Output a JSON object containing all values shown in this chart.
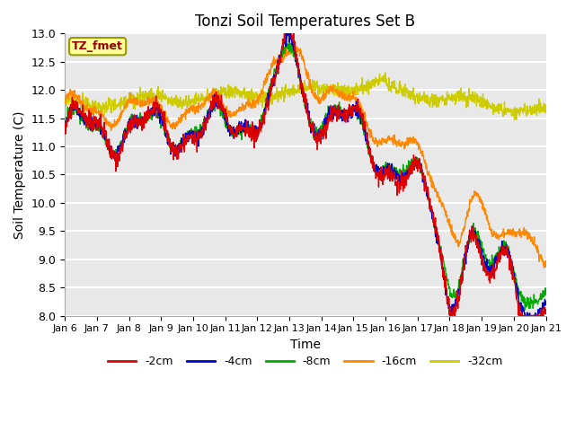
{
  "title": "Tonzi Soil Temperatures Set B",
  "xlabel": "Time",
  "ylabel": "Soil Temperature (C)",
  "ylim": [
    8.0,
    13.0
  ],
  "yticks": [
    8.0,
    8.5,
    9.0,
    9.5,
    10.0,
    10.5,
    11.0,
    11.5,
    12.0,
    12.5,
    13.0
  ],
  "colors": {
    "-2cm": "#dd0000",
    "-4cm": "#0000cc",
    "-8cm": "#00aa00",
    "-16cm": "#ff8800",
    "-32cm": "#cccc00"
  },
  "legend_label": "TZ_fmet",
  "legend_box_facecolor": "#ffff99",
  "legend_box_edgecolor": "#999900",
  "plot_bg_color": "#e8e8e8",
  "xtick_labels": [
    "Jan 6",
    "Jan 7",
    "Jan 8",
    "Jan 9",
    "Jan 10",
    "Jan 11",
    "Jan 12",
    "Jan 13",
    "Jan 14",
    "Jan 15",
    "Jan 16",
    "Jan 17",
    "Jan 18",
    "Jan 19",
    "Jan 20",
    "Jan 21"
  ]
}
